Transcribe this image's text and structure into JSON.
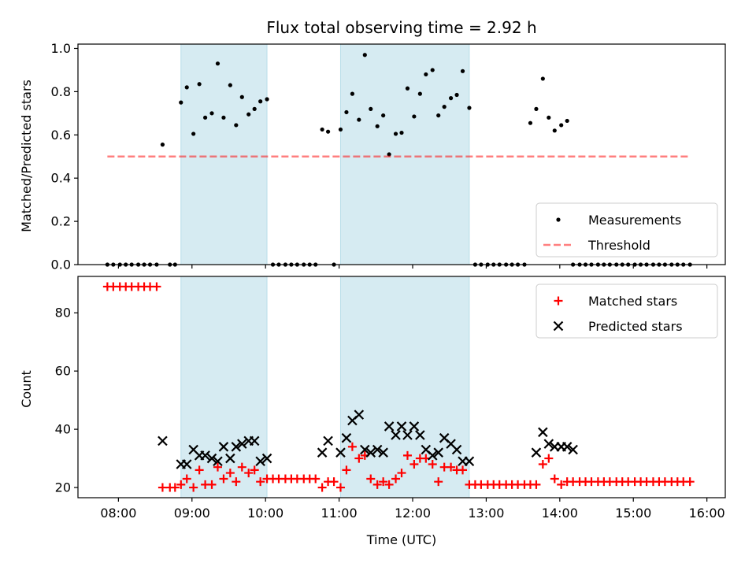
{
  "chart_data": [
    {
      "type": "scatter",
      "panel": "top",
      "title": "Flux total observing time = 2.92 h",
      "ylabel": "Matched/Predicted stars",
      "xlabel": "",
      "xlim": [
        7.45,
        16.25
      ],
      "ylim": [
        0,
        1.02
      ],
      "yticks": [
        0.0,
        0.2,
        0.4,
        0.6,
        0.8,
        1.0
      ],
      "ytick_labels": [
        "0.0",
        "0.2",
        "0.4",
        "0.6",
        "0.8",
        "1.0"
      ],
      "legend_position": "lower-right",
      "shaded_intervals": [
        [
          8.85,
          10.02
        ],
        [
          11.02,
          12.77
        ]
      ],
      "shade_color": "#add8e6",
      "series": [
        {
          "name": "Measurements",
          "color": "#000000",
          "marker": "dot",
          "x": [
            7.85,
            7.93,
            8.02,
            8.1,
            8.18,
            8.27,
            8.35,
            8.43,
            8.52,
            8.6,
            8.7,
            8.77,
            8.85,
            8.93,
            9.02,
            9.1,
            9.18,
            9.27,
            9.35,
            9.43,
            9.52,
            9.6,
            9.68,
            9.77,
            9.85,
            9.93,
            10.02,
            10.1,
            10.18,
            10.27,
            10.35,
            10.43,
            10.52,
            10.6,
            10.68,
            10.77,
            10.85,
            10.93,
            11.02,
            11.1,
            11.18,
            11.27,
            11.35,
            11.43,
            11.52,
            11.6,
            11.68,
            11.77,
            11.85,
            11.93,
            12.02,
            12.1,
            12.18,
            12.27,
            12.35,
            12.43,
            12.52,
            12.6,
            12.68,
            12.77,
            12.85,
            12.93,
            13.02,
            13.1,
            13.18,
            13.27,
            13.35,
            13.43,
            13.52,
            13.6,
            13.68,
            13.77,
            13.85,
            13.93,
            14.02,
            14.1,
            14.18,
            14.27,
            14.35,
            14.43,
            14.52,
            14.6,
            14.68,
            14.77,
            14.85,
            14.93,
            15.02,
            15.1,
            15.18,
            15.27,
            15.35,
            15.43,
            15.52,
            15.6,
            15.68,
            15.77
          ],
          "y": [
            0,
            0,
            0,
            0,
            0,
            0,
            0,
            0,
            0,
            0.555,
            0,
            0,
            0.75,
            0.82,
            0.605,
            0.835,
            0.68,
            0.7,
            0.93,
            0.68,
            0.83,
            0.645,
            0.775,
            0.695,
            0.72,
            0.755,
            0.765,
            0,
            0,
            0,
            0,
            0,
            0,
            0,
            0,
            0.625,
            0.615,
            0,
            0.625,
            0.705,
            0.79,
            0.67,
            0.97,
            0.72,
            0.64,
            0.69,
            0.51,
            0.605,
            0.61,
            0.815,
            0.685,
            0.79,
            0.88,
            0.9,
            0.69,
            0.73,
            0.77,
            0.785,
            0.895,
            0.725,
            0,
            0,
            0,
            0,
            0,
            0,
            0,
            0,
            0,
            0.655,
            0.72,
            0.86,
            0.68,
            0.62,
            0.645,
            0.665,
            0,
            0,
            0,
            0,
            0,
            0,
            0,
            0,
            0,
            0,
            0,
            0,
            0,
            0,
            0,
            0,
            0,
            0,
            0,
            0
          ]
        },
        {
          "name": "Threshold",
          "color": "#ff0000",
          "style": "dashed",
          "x": [
            7.85,
            15.77
          ],
          "y": [
            0.5,
            0.5
          ]
        }
      ]
    },
    {
      "type": "scatter",
      "panel": "bottom",
      "title": "",
      "ylabel": "Count",
      "xlabel": "Time (UTC)",
      "xlim": [
        7.45,
        16.25
      ],
      "ylim": [
        16.5,
        92.5
      ],
      "yticks": [
        20,
        40,
        60,
        80
      ],
      "ytick_labels": [
        "20",
        "40",
        "60",
        "80"
      ],
      "xticks": [
        8,
        9,
        10,
        11,
        12,
        13,
        14,
        15,
        16
      ],
      "xtick_labels": [
        "08:00",
        "09:00",
        "10:00",
        "11:00",
        "12:00",
        "13:00",
        "14:00",
        "15:00",
        "16:00"
      ],
      "legend_position": "upper-right",
      "shaded_intervals": [
        [
          8.85,
          10.02
        ],
        [
          11.02,
          12.77
        ]
      ],
      "shade_color": "#add8e6",
      "series": [
        {
          "name": "Matched stars",
          "color": "#ff0000",
          "marker": "plus",
          "x": [
            7.85,
            7.93,
            8.02,
            8.1,
            8.18,
            8.27,
            8.35,
            8.43,
            8.52,
            8.6,
            8.7,
            8.77,
            8.85,
            8.93,
            9.02,
            9.1,
            9.18,
            9.27,
            9.35,
            9.43,
            9.52,
            9.6,
            9.68,
            9.77,
            9.85,
            9.93,
            10.02,
            10.1,
            10.18,
            10.27,
            10.35,
            10.43,
            10.52,
            10.6,
            10.68,
            10.77,
            10.85,
            10.93,
            11.02,
            11.1,
            11.18,
            11.27,
            11.35,
            11.43,
            11.52,
            11.6,
            11.68,
            11.77,
            11.85,
            11.93,
            12.02,
            12.1,
            12.18,
            12.27,
            12.35,
            12.43,
            12.52,
            12.6,
            12.68,
            12.77,
            12.85,
            12.93,
            13.02,
            13.1,
            13.18,
            13.27,
            13.35,
            13.43,
            13.52,
            13.6,
            13.68,
            13.77,
            13.85,
            13.93,
            14.02,
            14.1,
            14.18,
            14.27,
            14.35,
            14.43,
            14.52,
            14.6,
            14.68,
            14.77,
            14.85,
            14.93,
            15.02,
            15.1,
            15.18,
            15.27,
            15.35,
            15.43,
            15.52,
            15.6,
            15.68,
            15.77
          ],
          "y": [
            89,
            89,
            89,
            89,
            89,
            89,
            89,
            89,
            89,
            20,
            20,
            20,
            21,
            23,
            20,
            26,
            21,
            21,
            27,
            23,
            25,
            22,
            27,
            25,
            26,
            22,
            23,
            23,
            23,
            23,
            23,
            23,
            23,
            23,
            23,
            20,
            22,
            22,
            20,
            26,
            34,
            30,
            31,
            23,
            21,
            22,
            21,
            23,
            25,
            31,
            28,
            30,
            30,
            28,
            22,
            27,
            27,
            26,
            26,
            21,
            21,
            21,
            21,
            21,
            21,
            21,
            21,
            21,
            21,
            21,
            21,
            28,
            30,
            23,
            21,
            22,
            22,
            22,
            22,
            22,
            22,
            22,
            22,
            22,
            22,
            22,
            22,
            22,
            22,
            22,
            22,
            22,
            22,
            22,
            22,
            22
          ]
        },
        {
          "name": "Predicted stars",
          "color": "#000000",
          "marker": "x",
          "x": [
            8.6,
            8.85,
            8.93,
            9.02,
            9.1,
            9.18,
            9.27,
            9.35,
            9.43,
            9.52,
            9.6,
            9.68,
            9.77,
            9.85,
            9.93,
            10.02,
            10.77,
            10.85,
            11.02,
            11.1,
            11.18,
            11.27,
            11.35,
            11.43,
            11.52,
            11.6,
            11.68,
            11.77,
            11.85,
            11.93,
            12.02,
            12.1,
            12.18,
            12.27,
            12.35,
            12.43,
            12.52,
            12.6,
            12.68,
            12.77,
            13.68,
            13.77,
            13.85,
            13.93,
            14.02,
            14.1,
            14.18
          ],
          "y": [
            36,
            28,
            28,
            33,
            31,
            31,
            30,
            29,
            34,
            30,
            34,
            35,
            36,
            36,
            29,
            30,
            32,
            36,
            32,
            37,
            43,
            45,
            33,
            32,
            33,
            32,
            41,
            38,
            41,
            38,
            41,
            38,
            33,
            31,
            32,
            37,
            35,
            33,
            29,
            29,
            32,
            39,
            35,
            34,
            34,
            34,
            33
          ]
        }
      ]
    }
  ]
}
